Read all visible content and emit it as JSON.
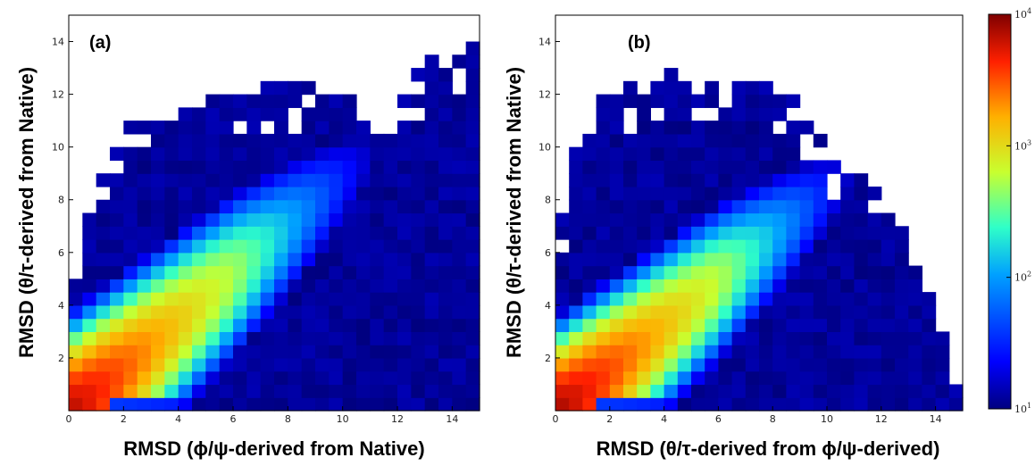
{
  "colors": {
    "background": "#ffffff",
    "empty_bin": "#ffffff",
    "colormap": [
      "#00007f",
      "#0000ff",
      "#00a0ff",
      "#2fffc8",
      "#c8ff2f",
      "#ffb000",
      "#ff2000",
      "#7f0000"
    ]
  },
  "chart_data": [
    {
      "type": "heatmap",
      "panel_label": "(a)",
      "xlabel": "RMSD (ϕ/ψ-derived from Native)",
      "ylabel": "RMSD (θ/τ-derived from Native)",
      "xlim": [
        0,
        15
      ],
      "ylim": [
        0,
        15
      ],
      "xticks": [
        "0",
        "2",
        "4",
        "6",
        "8",
        "10",
        "12",
        "14"
      ],
      "yticks": [
        "2",
        "4",
        "6",
        "8",
        "10",
        "12",
        "14"
      ],
      "bin_size": 0.5,
      "density_model": {
        "peak_log_count": 3.85,
        "ridge_slope": 0.9,
        "ridge_sigma": 1.25,
        "along_decay": 0.21,
        "spread_x": 0.12,
        "near_x_axis_band_max_x": 11,
        "outer_extent": [
          [
            0,
            4.8
          ],
          [
            1,
            8.5
          ],
          [
            2,
            10.8
          ],
          [
            4,
            11.3
          ],
          [
            6,
            12.2
          ],
          [
            8,
            12.3
          ],
          [
            10,
            12.2
          ],
          [
            11,
            10.5
          ],
          [
            12,
            11.5
          ],
          [
            13,
            13.2
          ],
          [
            14,
            13.7
          ],
          [
            15,
            13.9
          ]
        ]
      }
    },
    {
      "type": "heatmap",
      "panel_label": "(b)",
      "xlabel": "RMSD (θ/τ-derived from ϕ/ψ-derived)",
      "ylabel": "RMSD (θ/τ-derived from Native)",
      "xlim": [
        0,
        15
      ],
      "ylim": [
        0,
        15
      ],
      "xticks": [
        "0",
        "2",
        "4",
        "6",
        "8",
        "10",
        "12",
        "14"
      ],
      "yticks": [
        "2",
        "4",
        "6",
        "8",
        "10",
        "12",
        "14"
      ],
      "bin_size": 0.5,
      "density_model": {
        "peak_log_count": 3.9,
        "ridge_slope": 0.85,
        "ridge_sigma": 1.2,
        "along_decay": 0.22,
        "spread_x": 0.14,
        "near_x_axis_band_max_x": 10.5,
        "outer_extent": [
          [
            0,
            6.0
          ],
          [
            1,
            11.0
          ],
          [
            2,
            12.0
          ],
          [
            4,
            12.8
          ],
          [
            6,
            12.6
          ],
          [
            8,
            12.2
          ],
          [
            9,
            11.8
          ],
          [
            10,
            9.8
          ],
          [
            11,
            9.0
          ],
          [
            12,
            8.0
          ],
          [
            13,
            6.5
          ],
          [
            14,
            4.0
          ],
          [
            15,
            0
          ]
        ]
      }
    }
  ],
  "colorbar": {
    "scale": "log",
    "min": 10,
    "max": 10000,
    "ticks": [
      {
        "base": "10",
        "exp": "4"
      },
      {
        "base": "10",
        "exp": "3"
      },
      {
        "base": "10",
        "exp": "2"
      },
      {
        "base": "10",
        "exp": "1"
      }
    ]
  }
}
